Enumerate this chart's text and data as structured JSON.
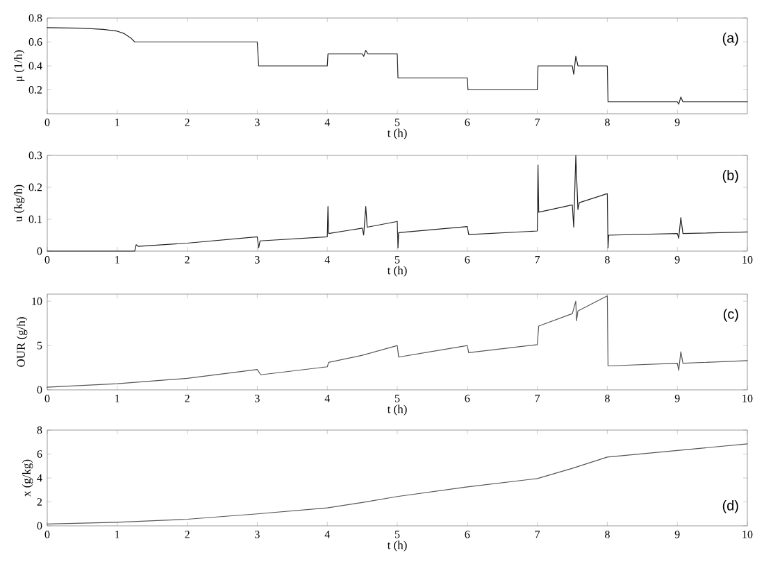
{
  "chart_data": [
    {
      "type": "line",
      "xlabel": "t (h)",
      "ylabel": "μ (1/h)",
      "color": "#222222",
      "xlim": [
        0,
        10
      ],
      "ylim": [
        0,
        0.8
      ],
      "xticks": [
        0,
        1,
        2,
        3,
        4,
        5,
        6,
        7,
        8,
        9
      ],
      "yticks": [
        0.2,
        0.4,
        0.6,
        0.8
      ],
      "annotations": [
        "(a)"
      ],
      "x": [
        0,
        0.5,
        0.8,
        1.0,
        1.1,
        1.2,
        1.25,
        3.0,
        3.02,
        4.0,
        4.01,
        4.5,
        4.52,
        4.55,
        4.58,
        5.0,
        5.01,
        6.0,
        6.01,
        7.0,
        7.01,
        7.5,
        7.52,
        7.55,
        7.58,
        8.0,
        8.01,
        9.0,
        9.02,
        9.05,
        9.08,
        10
      ],
      "values": [
        0.72,
        0.715,
        0.705,
        0.69,
        0.67,
        0.63,
        0.6,
        0.6,
        0.4,
        0.4,
        0.5,
        0.5,
        0.48,
        0.53,
        0.5,
        0.5,
        0.3,
        0.3,
        0.2,
        0.2,
        0.4,
        0.4,
        0.33,
        0.48,
        0.4,
        0.4,
        0.1,
        0.1,
        0.08,
        0.14,
        0.1,
        0.1
      ]
    },
    {
      "type": "line",
      "xlabel": "t (h)",
      "ylabel": "u (kg/h)",
      "color": "#222222",
      "xlim": [
        0,
        10
      ],
      "ylim": [
        0,
        0.3
      ],
      "xticks": [
        0,
        1,
        2,
        3,
        4,
        5,
        6,
        7,
        8,
        9,
        10
      ],
      "yticks": [
        0,
        0.1,
        0.2,
        0.3
      ],
      "annotations": [
        "(b)"
      ],
      "x": [
        0,
        1.25,
        1.27,
        1.3,
        2,
        3,
        3.02,
        3.04,
        4,
        4.01,
        4.02,
        4.5,
        4.52,
        4.55,
        4.57,
        5,
        5.01,
        5.02,
        6,
        6.02,
        7,
        7.01,
        7.02,
        7.5,
        7.52,
        7.55,
        7.58,
        7.6,
        8,
        8.01,
        8.02,
        9,
        9.02,
        9.05,
        9.08,
        10
      ],
      "values": [
        0,
        0,
        0.02,
        0.015,
        0.025,
        0.045,
        0.01,
        0.032,
        0.045,
        0.14,
        0.055,
        0.072,
        0.05,
        0.14,
        0.075,
        0.093,
        0.01,
        0.058,
        0.077,
        0.052,
        0.063,
        0.27,
        0.122,
        0.145,
        0.075,
        0.3,
        0.13,
        0.152,
        0.18,
        0.01,
        0.05,
        0.055,
        0.04,
        0.105,
        0.055,
        0.06
      ]
    },
    {
      "type": "line",
      "xlabel": "t (h)",
      "ylabel": "OUR (g/h)",
      "color": "#555555",
      "xlim": [
        0,
        10
      ],
      "ylim": [
        0,
        10.8
      ],
      "xticks": [
        0,
        1,
        2,
        3,
        4,
        5,
        6,
        7,
        8,
        9,
        10
      ],
      "yticks": [
        0,
        5,
        10
      ],
      "annotations": [
        "(c)"
      ],
      "x": [
        0,
        1,
        2,
        3,
        3.05,
        4,
        4.02,
        4.5,
        5,
        5.02,
        6,
        6.02,
        7,
        7.02,
        7.5,
        7.55,
        7.56,
        7.58,
        8,
        8.01,
        9,
        9.02,
        9.05,
        9.08,
        10
      ],
      "values": [
        0.3,
        0.7,
        1.3,
        2.3,
        1.7,
        2.6,
        3.1,
        3.9,
        5.0,
        3.7,
        5.0,
        4.2,
        5.1,
        7.2,
        8.6,
        10.0,
        7.8,
        8.9,
        10.6,
        2.7,
        3.0,
        2.2,
        4.3,
        3.0,
        3.3
      ]
    },
    {
      "type": "line",
      "xlabel": "t (h)",
      "ylabel": "x (g/kg)",
      "color": "#555555",
      "xlim": [
        0,
        10
      ],
      "ylim": [
        0,
        8
      ],
      "xticks": [
        0,
        1,
        2,
        3,
        4,
        5,
        6,
        7,
        8,
        9,
        10
      ],
      "yticks": [
        0,
        2,
        4,
        6,
        8
      ],
      "annotations": [
        "(d)"
      ],
      "x": [
        0,
        1,
        2,
        3,
        4,
        4.5,
        5,
        6,
        7,
        7.5,
        8,
        9,
        10
      ],
      "values": [
        0.15,
        0.3,
        0.55,
        1.0,
        1.5,
        1.95,
        2.45,
        3.25,
        3.95,
        4.8,
        5.75,
        6.3,
        6.85
      ]
    }
  ]
}
